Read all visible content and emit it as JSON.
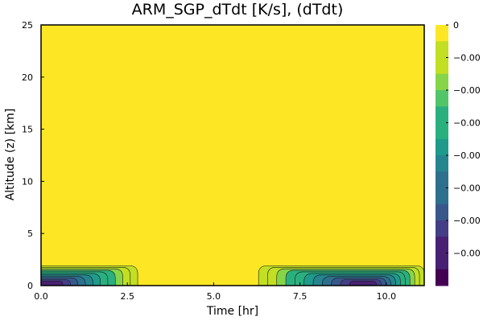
{
  "chart_data": {
    "type": "heatmap",
    "subtype": "filled-contour",
    "title": "ARM_SGP_dTdt [K/s], (dTdt)",
    "xlabel": "Time [hr]",
    "ylabel": "Altitude (z) [km]",
    "xlim": [
      0,
      11.1
    ],
    "ylim": [
      0,
      25
    ],
    "x_ticks": [
      {
        "value": 0,
        "label": "0.0"
      },
      {
        "value": 2.5,
        "label": "2.5"
      },
      {
        "value": 5,
        "label": "5.0"
      },
      {
        "value": 7.5,
        "label": "7.5"
      },
      {
        "value": 10,
        "label": "10.0"
      }
    ],
    "y_ticks": [
      {
        "value": 0,
        "label": "0"
      },
      {
        "value": 5,
        "label": "5"
      },
      {
        "value": 10,
        "label": "10"
      },
      {
        "value": 15,
        "label": "15"
      },
      {
        "value": 20,
        "label": "20"
      },
      {
        "value": 25,
        "label": "25"
      }
    ],
    "colorbar": {
      "colormap": "viridis",
      "levels": 16,
      "tick_labels": [
        "0",
        "−0.00",
        "−0.00",
        "−0.00",
        "−0.00",
        "−0.00",
        "−0.00",
        "−0.00"
      ]
    },
    "cooling_regions": [
      {
        "x_start": 0.0,
        "x_end": 2.8,
        "peak_x": 0.0,
        "z_top": 1.9,
        "edge": "left"
      },
      {
        "x_start": 6.3,
        "x_end": 11.1,
        "peak_x": 9.2,
        "z_top": 1.9,
        "edge": "center"
      }
    ],
    "background_value": 0,
    "grid": false,
    "legend": "colorbar-right"
  }
}
